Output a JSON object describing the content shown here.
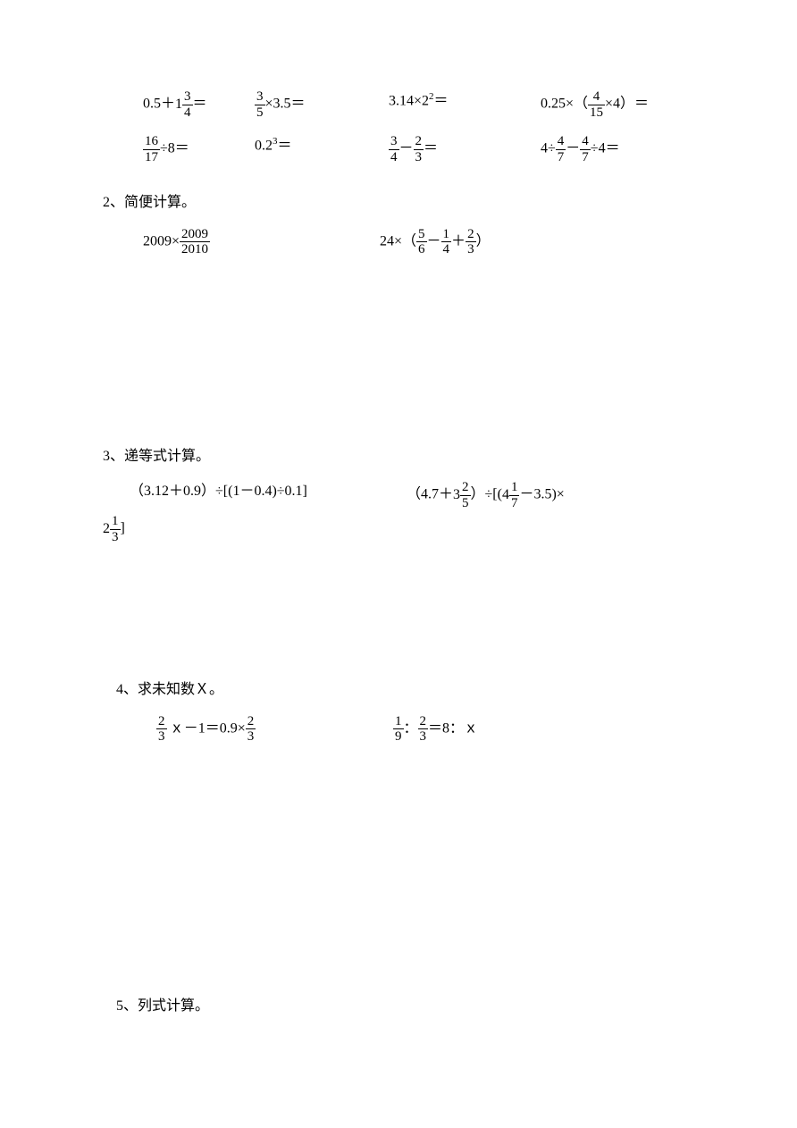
{
  "row1": {
    "a": {
      "pre": "0.5＋",
      "whole": "1",
      "num": "3",
      "den": "4",
      "post": "＝"
    },
    "b": {
      "num": "3",
      "den": "5",
      "post": "×3.5＝"
    },
    "c": {
      "pre": "3.14×2",
      "sup": "2",
      "post": "＝"
    },
    "d": {
      "pre": "0.25×（",
      "num": "4",
      "den": "15",
      "post": "×4）＝"
    }
  },
  "row2": {
    "a": {
      "num": "16",
      "den": "17",
      "post": "÷8＝"
    },
    "b": {
      "pre": "0.2",
      "sup": "3",
      "post": "＝"
    },
    "c": {
      "num1": "3",
      "den1": "4",
      "mid": "－",
      "num2": "2",
      "den2": "3",
      "post": "＝"
    },
    "d": {
      "pre": "4÷",
      "num1": "4",
      "den1": "7",
      "mid": "－",
      "num2": "4",
      "den2": "7",
      "post": "÷4＝"
    }
  },
  "s2": {
    "title": "2、简便计算。",
    "a": {
      "pre": "2009×",
      "num": "2009",
      "den": "2010"
    },
    "b": {
      "pre": "24×（",
      "num1": "5",
      "den1": "6",
      "mid1": "－",
      "num2": "1",
      "den2": "4",
      "mid2": "＋",
      "num3": "2",
      "den3": "3",
      "post": "）"
    }
  },
  "s3": {
    "title": "3、递等式计算。",
    "a": "（3.12＋0.9）÷[(1－0.4)÷0.1]",
    "b": {
      "pre": "（4.7＋",
      "whole1": "3",
      "num1": "2",
      "den1": "5",
      "mid": "）÷[(",
      "whole2": "4",
      "num2": "1",
      "den2": "7",
      "post": "－3.5)×"
    },
    "wrap": {
      "whole": "2",
      "num": "1",
      "den": "3",
      "post": "]"
    }
  },
  "s4": {
    "title": "4、求未知数Ｘ。",
    "a": {
      "num1": "2",
      "den1": "3",
      "mid": "ｘ－1＝0.9×",
      "num2": "2",
      "den2": "3"
    },
    "b": {
      "num1": "1",
      "den1": "9",
      "mid1": "：",
      "num2": "2",
      "den2": "3",
      "post": "＝8：ｘ"
    }
  },
  "s5": {
    "title": "5、列式计算。"
  }
}
